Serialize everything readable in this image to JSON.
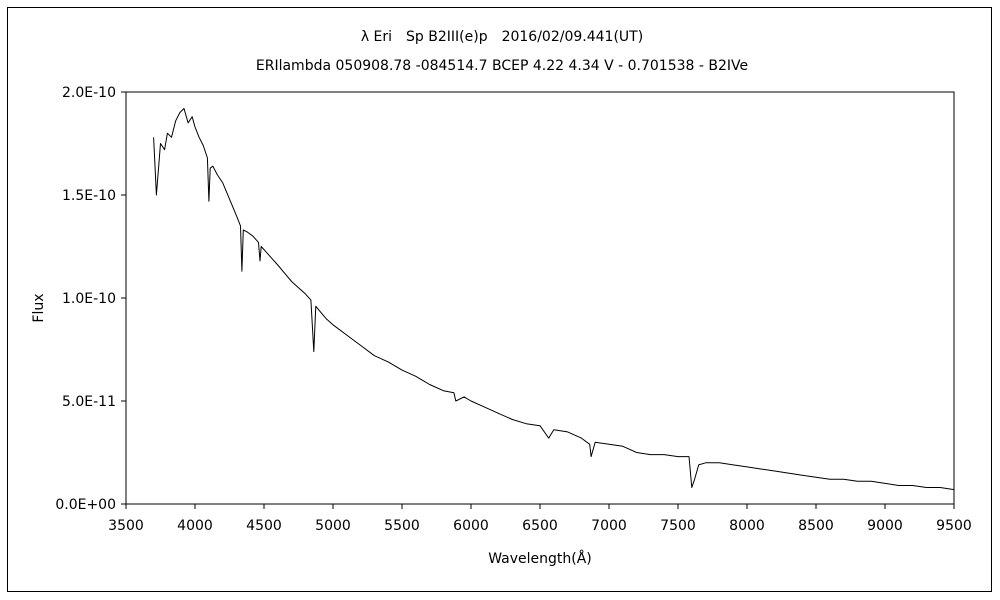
{
  "chart_data": {
    "type": "line",
    "title": "λ Eri　Sp B2III(e)p　2016/02/09.441(UT)",
    "subtitle": "ERIlambda 050908.78 -084514.7 BCEP 4.22 4.34 V - 0.701538 - B2IVe",
    "xlabel": "Wavelength(Å)",
    "ylabel": "Flux",
    "xlim": [
      3500,
      9500
    ],
    "ylim": [
      0,
      2e-10
    ],
    "xticks": [
      3500,
      4000,
      4500,
      5000,
      5500,
      6000,
      6500,
      7000,
      7500,
      8000,
      8500,
      9000,
      9500
    ],
    "xtick_labels": [
      "3500",
      "4000",
      "4500",
      "5000",
      "5500",
      "6000",
      "6500",
      "7000",
      "7500",
      "8000",
      "8500",
      "9000",
      "9500"
    ],
    "yticks": [
      0,
      5e-11,
      1e-10,
      1.5e-10,
      2e-10
    ],
    "ytick_labels": [
      "0.0E+00",
      "5.0E-11",
      "1.0E-10",
      "1.5E-10",
      "2.0E-10"
    ],
    "grid": false,
    "legend": "none",
    "line_color": "#000000",
    "series": [
      {
        "x": [
          3700,
          3720,
          3750,
          3780,
          3800,
          3830,
          3860,
          3890,
          3920,
          3950,
          3980,
          4000,
          4030,
          4060,
          4090,
          4101,
          4110,
          4130,
          4160,
          4200,
          4250,
          4300,
          4330,
          4340,
          4350,
          4380,
          4420,
          4460,
          4471,
          4480,
          4520,
          4560,
          4600,
          4650,
          4700,
          4750,
          4800,
          4840,
          4861,
          4875,
          4900,
          4950,
          5000,
          5100,
          5200,
          5300,
          5400,
          5500,
          5600,
          5700,
          5800,
          5876,
          5890,
          5950,
          6000,
          6100,
          6200,
          6300,
          6400,
          6500,
          6563,
          6600,
          6700,
          6800,
          6860,
          6870,
          6900,
          7000,
          7100,
          7200,
          7300,
          7400,
          7500,
          7580,
          7600,
          7620,
          7650,
          7700,
          7800,
          7900,
          8000,
          8100,
          8200,
          8300,
          8400,
          8500,
          8600,
          8700,
          8800,
          8900,
          9000,
          9100,
          9200,
          9300,
          9400,
          9500
        ],
        "y": [
          1.78e-10,
          1.5e-10,
          1.75e-10,
          1.72e-10,
          1.8e-10,
          1.78e-10,
          1.86e-10,
          1.9e-10,
          1.92e-10,
          1.85e-10,
          1.88e-10,
          1.83e-10,
          1.78e-10,
          1.74e-10,
          1.68e-10,
          1.47e-10,
          1.63e-10,
          1.64e-10,
          1.6e-10,
          1.56e-10,
          1.48e-10,
          1.4e-10,
          1.35e-10,
          1.13e-10,
          1.33e-10,
          1.32e-10,
          1.3e-10,
          1.27e-10,
          1.18e-10,
          1.25e-10,
          1.22e-10,
          1.19e-10,
          1.16e-10,
          1.12e-10,
          1.08e-10,
          1.05e-10,
          1.02e-10,
          9.9e-11,
          7.4e-11,
          9.6e-11,
          9.4e-11,
          9e-11,
          8.7e-11,
          8.2e-11,
          7.7e-11,
          7.2e-11,
          6.9e-11,
          6.5e-11,
          6.2e-11,
          5.8e-11,
          5.5e-11,
          5.4e-11,
          5e-11,
          5.2e-11,
          5e-11,
          4.7e-11,
          4.4e-11,
          4.1e-11,
          3.9e-11,
          3.8e-11,
          3.2e-11,
          3.6e-11,
          3.5e-11,
          3.2e-11,
          2.9e-11,
          2.3e-11,
          3e-11,
          2.9e-11,
          2.8e-11,
          2.5e-11,
          2.4e-11,
          2.4e-11,
          2.3e-11,
          2.3e-11,
          8e-12,
          1.2e-11,
          1.9e-11,
          2e-11,
          2e-11,
          1.9e-11,
          1.8e-11,
          1.7e-11,
          1.6e-11,
          1.5e-11,
          1.4e-11,
          1.3e-11,
          1.2e-11,
          1.2e-11,
          1.1e-11,
          1.1e-11,
          1e-11,
          9e-12,
          9e-12,
          8e-12,
          8e-12,
          7e-12
        ]
      }
    ]
  }
}
